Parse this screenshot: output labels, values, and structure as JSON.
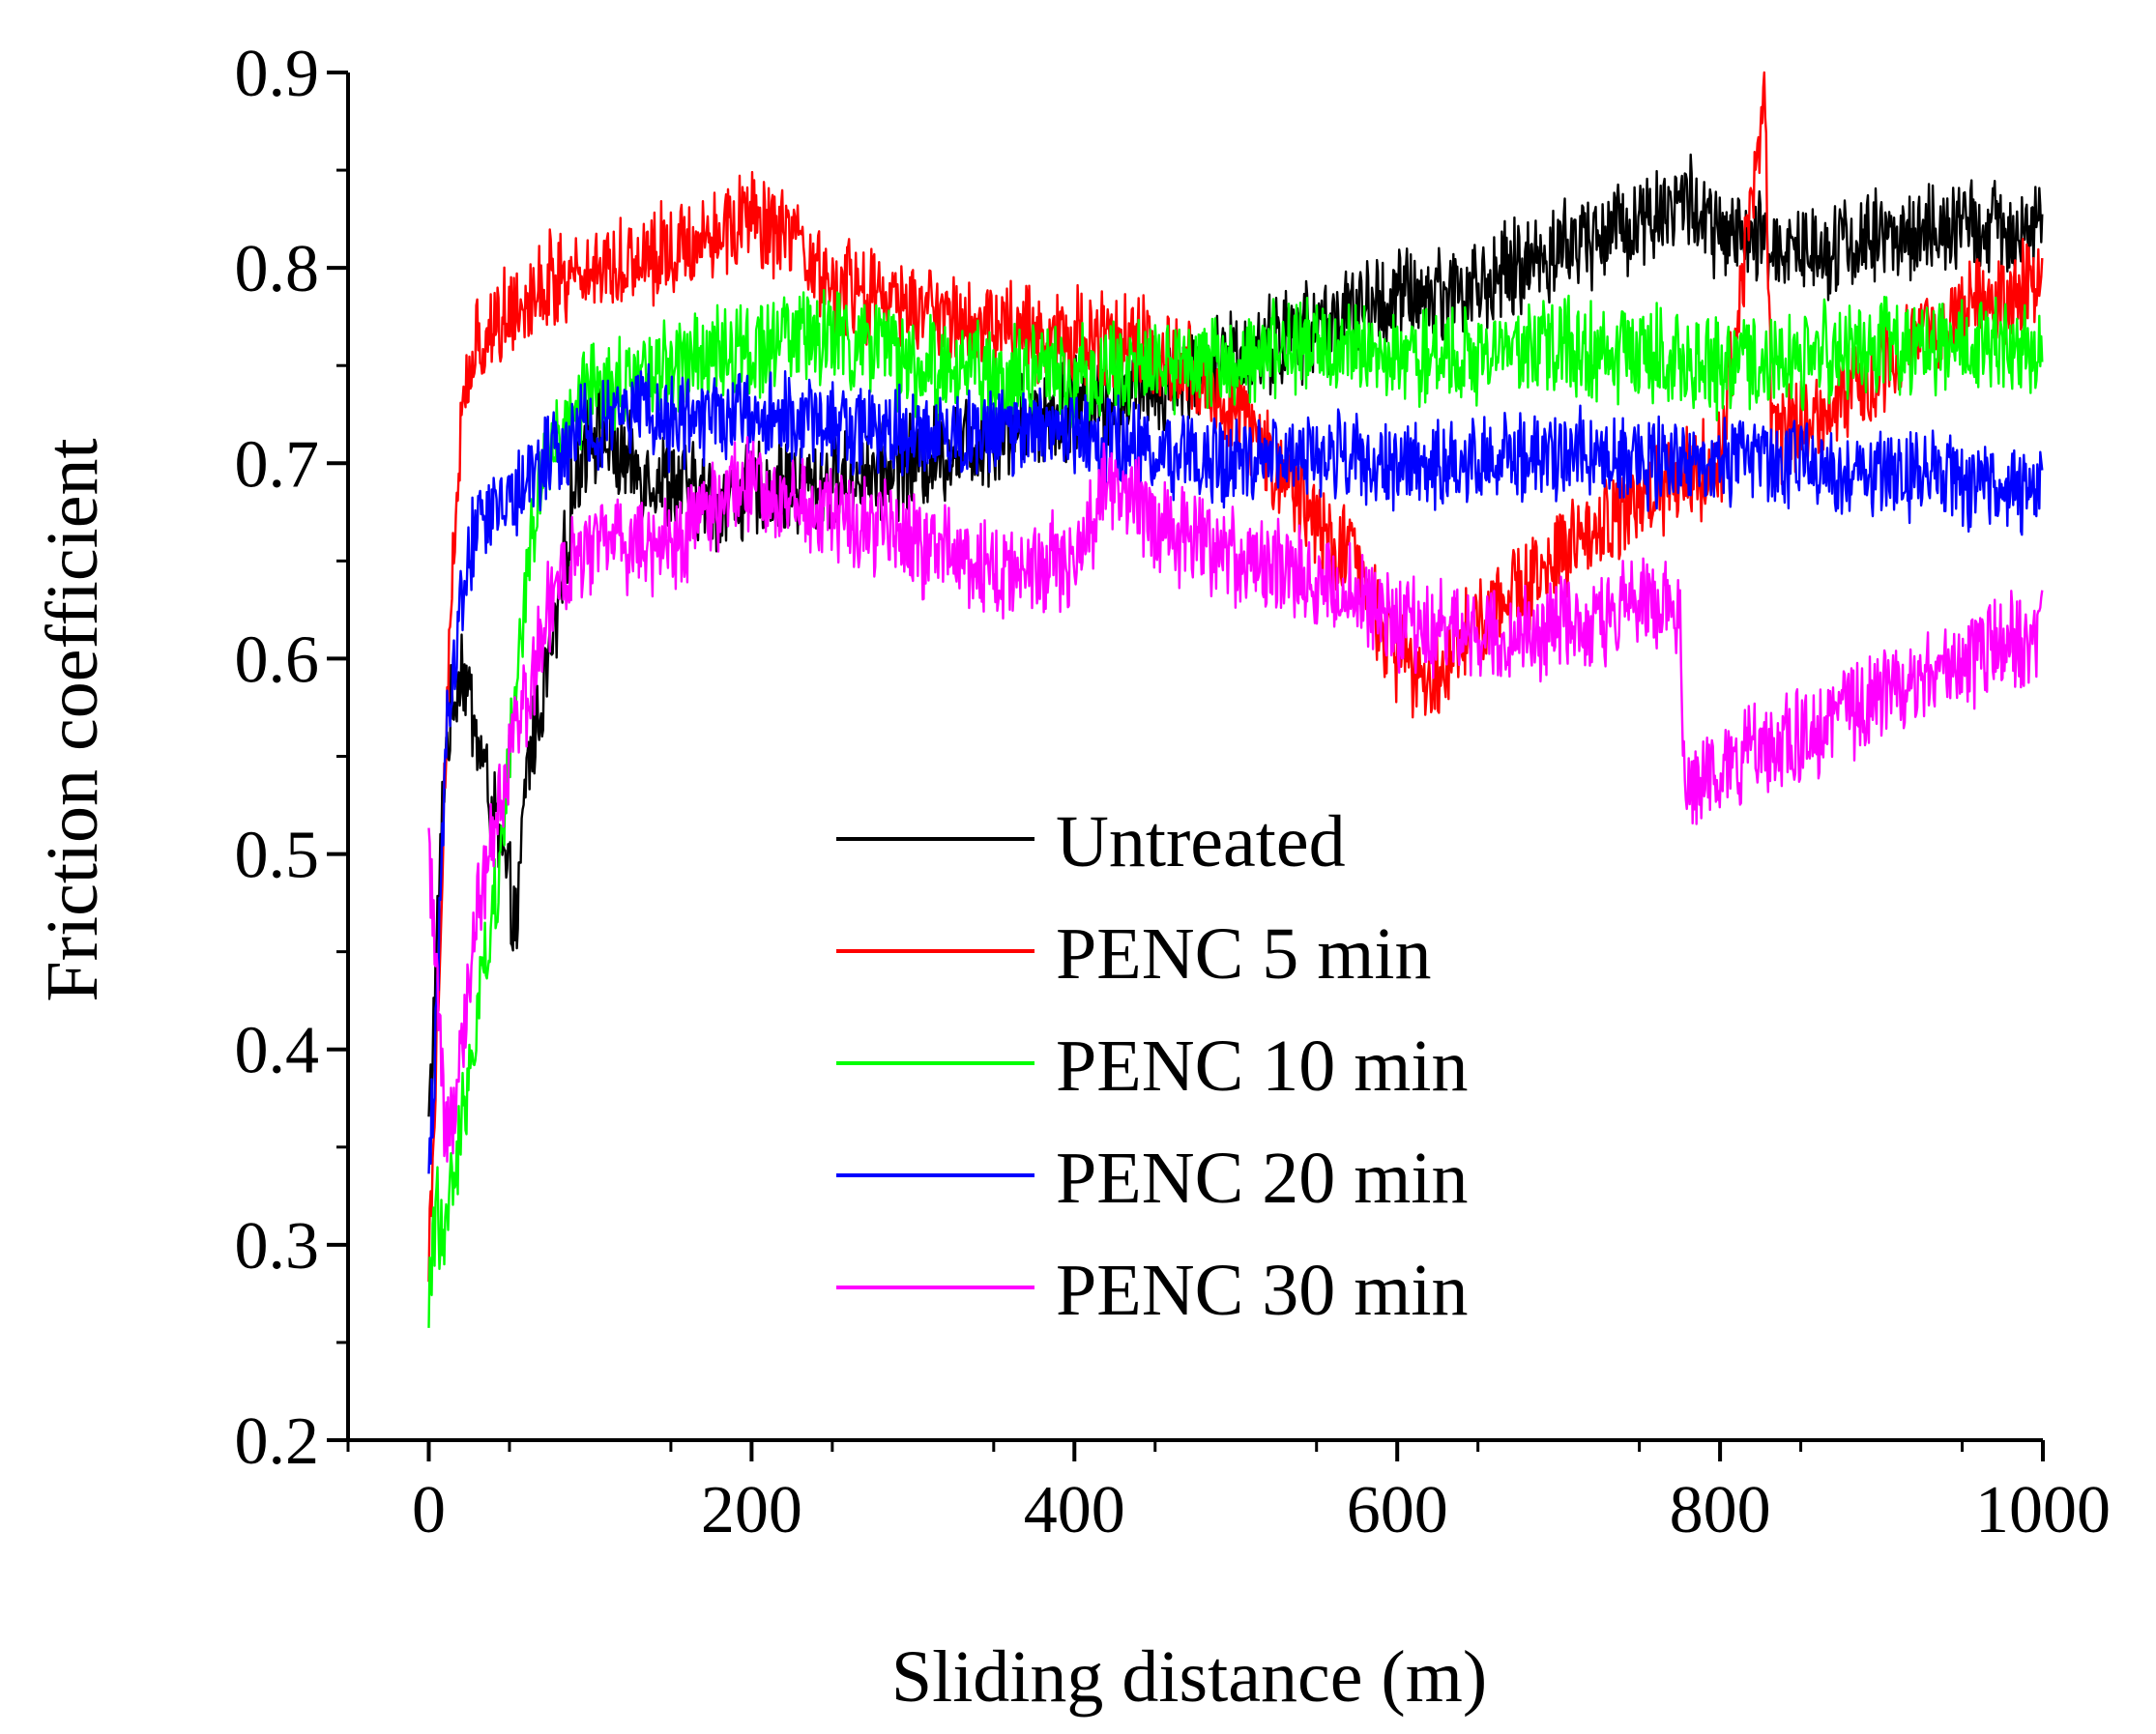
{
  "chart_data": {
    "type": "line",
    "title": "",
    "xlabel": "Sliding distance (m)",
    "ylabel": "Friction coefficient",
    "xlim": [
      -50,
      1000
    ],
    "ylim": [
      0.2,
      0.9
    ],
    "xticks": [
      0,
      200,
      400,
      600,
      800,
      1000
    ],
    "xtick_labels": [
      "0",
      "200",
      "400",
      "600",
      "800",
      "1000"
    ],
    "yticks": [
      0.2,
      0.3,
      0.4,
      0.5,
      0.6,
      0.7,
      0.8,
      0.9
    ],
    "ytick_labels": [
      "0.2",
      "0.3",
      "0.4",
      "0.5",
      "0.6",
      "0.7",
      "0.8",
      "0.9"
    ],
    "grid": false,
    "legend_position": "center-bottom",
    "series": [
      {
        "name": "Untreated",
        "color": "#000000",
        "noise": 0.022,
        "x": [
          0,
          5,
          10,
          20,
          30,
          40,
          50,
          55,
          60,
          70,
          80,
          90,
          100,
          120,
          150,
          180,
          200,
          250,
          300,
          350,
          400,
          450,
          500,
          550,
          600,
          650,
          700,
          750,
          780,
          800,
          850,
          900,
          950,
          1000
        ],
        "y": [
          0.36,
          0.45,
          0.55,
          0.6,
          0.56,
          0.52,
          0.48,
          0.46,
          0.54,
          0.58,
          0.62,
          0.69,
          0.72,
          0.7,
          0.69,
          0.68,
          0.685,
          0.69,
          0.7,
          0.715,
          0.73,
          0.74,
          0.755,
          0.77,
          0.785,
          0.79,
          0.81,
          0.825,
          0.835,
          0.815,
          0.81,
          0.815,
          0.82,
          0.82
        ]
      },
      {
        "name": "PENC 5 min",
        "color": "#ff0000",
        "noise": 0.022,
        "x": [
          0,
          5,
          10,
          15,
          20,
          30,
          50,
          80,
          100,
          130,
          150,
          180,
          200,
          220,
          250,
          300,
          350,
          400,
          450,
          500,
          550,
          580,
          600,
          620,
          650,
          680,
          700,
          750,
          800,
          828,
          832,
          850,
          900,
          950,
          1000
        ],
        "y": [
          0.3,
          0.4,
          0.55,
          0.65,
          0.72,
          0.76,
          0.78,
          0.795,
          0.8,
          0.805,
          0.81,
          0.82,
          0.825,
          0.815,
          0.79,
          0.78,
          0.77,
          0.765,
          0.76,
          0.73,
          0.67,
          0.64,
          0.6,
          0.59,
          0.62,
          0.64,
          0.65,
          0.68,
          0.7,
          0.89,
          0.71,
          0.72,
          0.75,
          0.78,
          0.79
        ]
      },
      {
        "name": "PENC 10 min",
        "color": "#00ff00",
        "noise": 0.022,
        "x": [
          0,
          5,
          10,
          20,
          30,
          40,
          50,
          60,
          70,
          80,
          100,
          150,
          200,
          250,
          300,
          350,
          400,
          450,
          500,
          550,
          600,
          650,
          700,
          750,
          800,
          850,
          900,
          950,
          1000
        ],
        "y": [
          0.27,
          0.32,
          0.3,
          0.36,
          0.42,
          0.47,
          0.55,
          0.64,
          0.7,
          0.71,
          0.735,
          0.75,
          0.76,
          0.765,
          0.75,
          0.745,
          0.745,
          0.75,
          0.755,
          0.76,
          0.755,
          0.755,
          0.76,
          0.755,
          0.75,
          0.755,
          0.76,
          0.76,
          0.76
        ]
      },
      {
        "name": "PENC 20 min",
        "color": "#0000ff",
        "noise": 0.02,
        "x": [
          0,
          5,
          10,
          20,
          30,
          50,
          80,
          100,
          130,
          150,
          200,
          250,
          300,
          350,
          400,
          450,
          500,
          550,
          600,
          650,
          700,
          750,
          800,
          850,
          870,
          900,
          950,
          1000
        ],
        "y": [
          0.33,
          0.42,
          0.55,
          0.63,
          0.67,
          0.68,
          0.71,
          0.72,
          0.73,
          0.72,
          0.725,
          0.72,
          0.715,
          0.715,
          0.715,
          0.705,
          0.7,
          0.705,
          0.7,
          0.7,
          0.705,
          0.7,
          0.7,
          0.7,
          0.695,
          0.695,
          0.69,
          0.685
        ]
      },
      {
        "name": "PENC 30 min",
        "color": "#ff00ff",
        "noise": 0.022,
        "x": [
          0,
          5,
          10,
          15,
          20,
          30,
          50,
          70,
          80,
          100,
          150,
          180,
          200,
          250,
          300,
          350,
          400,
          420,
          450,
          500,
          550,
          600,
          650,
          700,
          750,
          775,
          778,
          800,
          850,
          900,
          950,
          1000
        ],
        "y": [
          0.5,
          0.44,
          0.36,
          0.36,
          0.4,
          0.47,
          0.55,
          0.61,
          0.64,
          0.655,
          0.66,
          0.68,
          0.69,
          0.675,
          0.66,
          0.645,
          0.65,
          0.69,
          0.67,
          0.65,
          0.64,
          0.62,
          0.61,
          0.615,
          0.625,
          0.63,
          0.53,
          0.545,
          0.56,
          0.58,
          0.6,
          0.615
        ]
      }
    ]
  }
}
